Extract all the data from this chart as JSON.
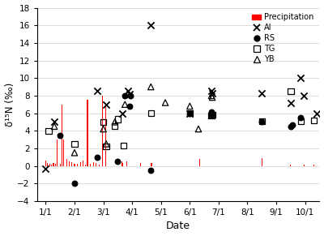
{
  "title": "",
  "xlabel": "Date",
  "ylabel": "δ¹⁵N (‰)",
  "ylim": [
    -4,
    18
  ],
  "yticks": [
    -4,
    -2,
    0,
    2,
    4,
    6,
    8,
    10,
    12,
    14,
    16,
    18
  ],
  "xlim": [
    -0.3,
    9.5
  ],
  "xtick_positions": [
    0,
    1,
    2,
    3,
    4,
    5,
    6,
    7,
    8,
    9
  ],
  "xtick_labels": [
    "1/1",
    "2/1",
    "3/1",
    "4/1",
    "5/1",
    "6/1",
    "7/1",
    "8/1",
    "9/1",
    "10/1"
  ],
  "AI_x": [
    0.0,
    0.3,
    1.8,
    2.1,
    2.65,
    2.85,
    2.9,
    3.65,
    5.0,
    5.75,
    5.78,
    7.5,
    8.5,
    8.85,
    8.95,
    9.4
  ],
  "AI_y": [
    -0.3,
    5.0,
    8.5,
    7.0,
    6.0,
    8.5,
    8.2,
    16.0,
    6.0,
    8.5,
    8.3,
    8.3,
    7.2,
    10.0,
    8.0,
    6.0
  ],
  "RS_x": [
    0.5,
    1.0,
    1.8,
    2.5,
    2.75,
    2.9,
    2.95,
    3.65,
    5.0,
    5.75,
    5.78,
    7.5,
    8.5,
    8.55,
    8.85
  ],
  "RS_y": [
    3.5,
    -2.0,
    1.0,
    0.5,
    8.0,
    6.8,
    8.0,
    -0.5,
    6.0,
    6.1,
    5.8,
    5.0,
    4.5,
    4.7,
    5.5
  ],
  "TG_x": [
    0.1,
    1.0,
    2.0,
    2.1,
    2.4,
    2.5,
    2.7,
    3.65,
    5.0,
    5.75,
    5.78,
    7.5,
    8.5,
    8.85,
    9.3
  ],
  "TG_y": [
    4.0,
    2.5,
    5.0,
    2.2,
    4.5,
    5.3,
    2.3,
    6.0,
    6.0,
    5.7,
    5.8,
    5.1,
    8.5,
    5.1,
    5.2
  ],
  "YB_x": [
    0.3,
    1.0,
    2.0,
    2.1,
    2.4,
    2.75,
    3.65,
    4.15,
    5.0,
    5.3,
    5.75,
    5.78
  ],
  "YB_y": [
    4.5,
    1.5,
    4.2,
    2.5,
    5.0,
    7.0,
    9.0,
    7.2,
    6.8,
    4.2,
    8.0,
    7.8
  ],
  "precip_x": [
    0.0,
    0.07,
    0.13,
    0.2,
    0.27,
    0.33,
    0.4,
    0.5,
    0.57,
    0.63,
    0.73,
    0.83,
    0.9,
    1.0,
    1.1,
    1.2,
    1.3,
    1.37,
    1.45,
    1.55,
    1.65,
    1.75,
    1.85,
    1.97,
    2.07,
    2.65,
    2.68,
    2.8,
    3.3,
    3.65,
    3.68,
    5.35,
    7.5,
    8.5,
    8.97,
    9.3
  ],
  "precip_heights": [
    0.6,
    0.3,
    0.2,
    0.1,
    0.3,
    0.2,
    3.0,
    0.2,
    7.0,
    3.0,
    0.8,
    0.5,
    0.4,
    0.2,
    0.2,
    0.4,
    0.6,
    0.1,
    7.5,
    0.2,
    0.4,
    0.3,
    0.1,
    8.0,
    7.2,
    0.5,
    0.3,
    0.5,
    0.3,
    0.3,
    0.3,
    0.8,
    0.9,
    0.1,
    0.1,
    0.1
  ],
  "background_color": "#ffffff",
  "precip_color": "#ff0000"
}
